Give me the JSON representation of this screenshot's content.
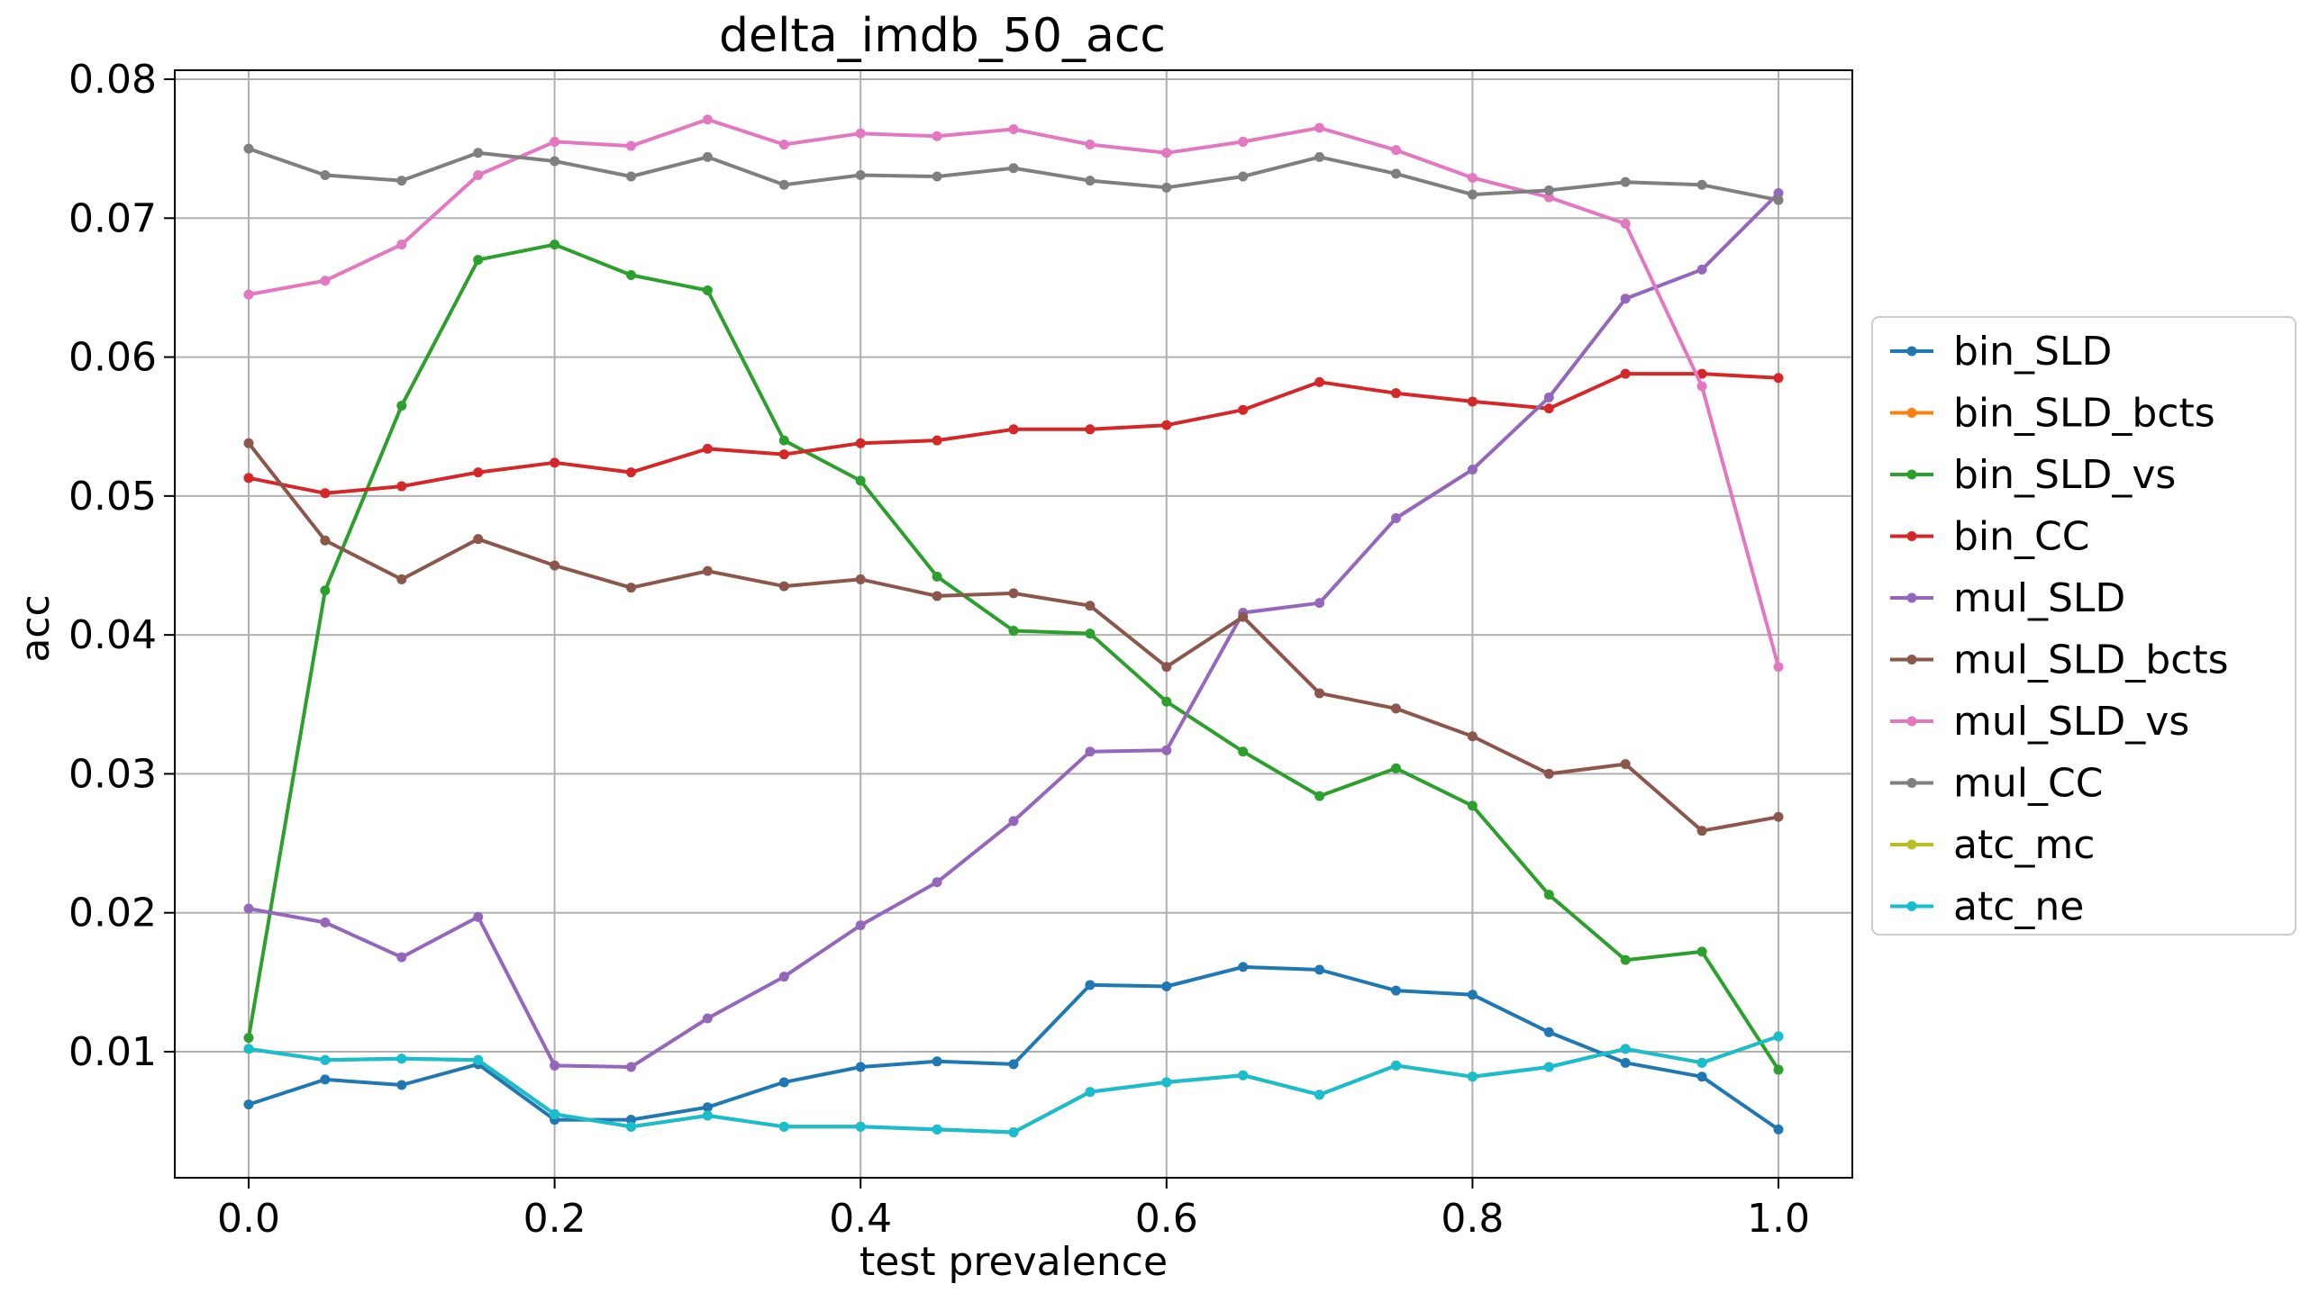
{
  "chart_data": {
    "type": "line",
    "title": "delta_imdb_50_acc",
    "xlabel": "test prevalence",
    "ylabel": "acc",
    "xlim": [
      -0.05,
      1.05
    ],
    "ylim": [
      0.0,
      0.081
    ],
    "xticks": [
      0.0,
      0.2,
      0.4,
      0.6,
      0.8,
      1.0
    ],
    "xtick_labels": [
      "0.0",
      "0.2",
      "0.4",
      "0.6",
      "0.8",
      "1.0"
    ],
    "yticks": [
      0.01,
      0.02,
      0.03,
      0.04,
      0.05,
      0.06,
      0.07,
      0.08
    ],
    "ytick_labels": [
      "0.01",
      "0.02",
      "0.03",
      "0.04",
      "0.05",
      "0.06",
      "0.07",
      "0.08"
    ],
    "grid": true,
    "legend_position": "right-center-outside",
    "x": [
      0.0,
      0.05,
      0.1,
      0.15,
      0.2,
      0.25,
      0.3,
      0.35,
      0.4,
      0.45,
      0.5,
      0.55,
      0.6,
      0.65,
      0.7,
      0.75,
      0.8,
      0.85,
      0.9,
      0.95,
      1.0
    ],
    "series": [
      {
        "name": "bin_SLD",
        "color": "#1f77b4",
        "values": [
          0.0062,
          0.008,
          0.0076,
          0.0091,
          0.0051,
          0.0051,
          0.006,
          0.0078,
          0.0089,
          0.0093,
          0.0091,
          0.0148,
          0.0147,
          0.0161,
          0.0159,
          0.0144,
          0.0141,
          0.0114,
          0.0092,
          0.0082,
          0.0044
        ]
      },
      {
        "name": "bin_SLD_bcts",
        "color": "#ff7f0e",
        "values": [
          0.0102,
          0.0094,
          0.0095,
          0.0094,
          0.0055,
          0.0046,
          0.0054,
          0.0046,
          0.0046,
          0.0044,
          0.0042,
          0.0071,
          0.0078,
          0.0083,
          0.0069,
          0.009,
          0.0082,
          0.0089,
          0.0102,
          0.0092,
          0.0111
        ]
      },
      {
        "name": "bin_SLD_vs",
        "color": "#2ca02c",
        "values": [
          0.011,
          0.0432,
          0.0565,
          0.067,
          0.0681,
          0.0659,
          0.0648,
          0.054,
          0.0511,
          0.0442,
          0.0403,
          0.0401,
          0.0352,
          0.0316,
          0.0284,
          0.0304,
          0.0277,
          0.0213,
          0.0166,
          0.0172,
          0.0087
        ]
      },
      {
        "name": "bin_CC",
        "color": "#d62728",
        "values": [
          0.0513,
          0.0502,
          0.0507,
          0.0517,
          0.0524,
          0.0517,
          0.0534,
          0.053,
          0.0538,
          0.054,
          0.0548,
          0.0548,
          0.0551,
          0.0562,
          0.0582,
          0.0574,
          0.0568,
          0.0563,
          0.0588,
          0.0588,
          0.0585
        ]
      },
      {
        "name": "mul_SLD",
        "color": "#9467bd",
        "values": [
          0.0203,
          0.0193,
          0.0168,
          0.0197,
          0.009,
          0.0089,
          0.0124,
          0.0154,
          0.0191,
          0.0222,
          0.0266,
          0.0316,
          0.0317,
          0.0416,
          0.0423,
          0.0484,
          0.0519,
          0.0571,
          0.0642,
          0.0663,
          0.0718
        ]
      },
      {
        "name": "mul_SLD_bcts",
        "color": "#8c564b",
        "values": [
          0.0538,
          0.0468,
          0.044,
          0.0469,
          0.045,
          0.0434,
          0.0446,
          0.0435,
          0.044,
          0.0428,
          0.043,
          0.0421,
          0.0377,
          0.0413,
          0.0358,
          0.0347,
          0.0327,
          0.03,
          0.0307,
          0.0259,
          0.0269
        ]
      },
      {
        "name": "mul_SLD_vs",
        "color": "#e377c2",
        "values": [
          0.0645,
          0.0655,
          0.0681,
          0.0731,
          0.0755,
          0.0752,
          0.0771,
          0.0753,
          0.0761,
          0.0759,
          0.0764,
          0.0753,
          0.0747,
          0.0755,
          0.0765,
          0.0749,
          0.0729,
          0.0715,
          0.0696,
          0.0579,
          0.0377
        ]
      },
      {
        "name": "mul_CC",
        "color": "#7f7f7f",
        "values": [
          0.075,
          0.0731,
          0.0727,
          0.0747,
          0.0741,
          0.073,
          0.0744,
          0.0724,
          0.0731,
          0.073,
          0.0736,
          0.0727,
          0.0722,
          0.073,
          0.0744,
          0.0732,
          0.0717,
          0.072,
          0.0726,
          0.0724,
          0.0713
        ]
      },
      {
        "name": "atc_mc",
        "color": "#bcbd22",
        "values": [
          0.0102,
          0.0094,
          0.0095,
          0.0094,
          0.0055,
          0.0046,
          0.0054,
          0.0046,
          0.0046,
          0.0044,
          0.0042,
          0.0071,
          0.0078,
          0.0083,
          0.0069,
          0.009,
          0.0082,
          0.0089,
          0.0102,
          0.0092,
          0.0111
        ]
      },
      {
        "name": "atc_ne",
        "color": "#17becf",
        "values": [
          0.0102,
          0.0094,
          0.0095,
          0.0094,
          0.0055,
          0.0046,
          0.0054,
          0.0046,
          0.0046,
          0.0044,
          0.0042,
          0.0071,
          0.0078,
          0.0083,
          0.0069,
          0.009,
          0.0082,
          0.0089,
          0.0102,
          0.0092,
          0.0111
        ]
      }
    ]
  }
}
